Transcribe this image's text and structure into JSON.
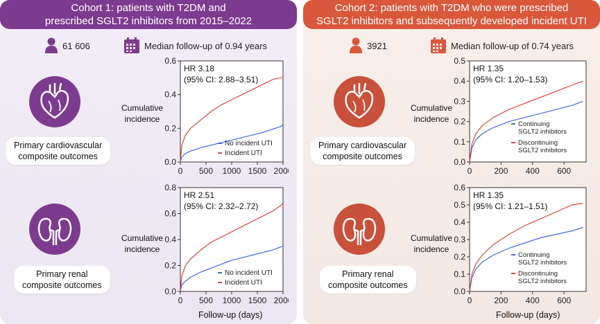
{
  "colors": {
    "cohort1": "#7d3b8f",
    "cohort2": "#d9573b",
    "blue": "#4169e1",
    "red": "#e0453a"
  },
  "cohort1": {
    "banner_line1": "Cohort 1: patients with T2DM and",
    "banner_line2": "prescribed SGLT2 inhibitors from 2015–2022",
    "n": "61 606",
    "follow_up": "Median follow-up of 0.94 years",
    "cardio_label_line1": "Primary cardiovascular",
    "cardio_label_line2": "composite outcomes",
    "renal_label_line1": "Primary renal",
    "renal_label_line2": "composite outcomes"
  },
  "cohort2": {
    "banner_line1": "Cohort 2: patients with T2DM who were prescribed",
    "banner_line2": "SGLT2 inhibitors and subsequently developed incident UTI",
    "n": "3921",
    "follow_up": "Median follow-up of 0.74 years",
    "cardio_label_line1": "Primary cardiovascular",
    "cardio_label_line2": "composite outcomes",
    "renal_label_line1": "Primary renal",
    "renal_label_line2": "composite outcomes"
  },
  "axis": {
    "ylabel_line1": "Cumulative",
    "ylabel_line2": "incidence",
    "xlabel": "Follow-up (days)"
  },
  "chart_data": [
    {
      "id": "c1_cardio",
      "type": "line",
      "title": "Cohort 1 cardiovascular",
      "hr_line1": "HR 3.18",
      "hr_line2": "(95% CI: 2.88–3.51)",
      "xlim": [
        0,
        2000
      ],
      "ylim": [
        0,
        0.6
      ],
      "xticks": [
        0,
        500,
        1000,
        1500,
        2000
      ],
      "yticks": [
        0.0,
        0.2,
        0.4,
        0.6
      ],
      "ytick_labels": [
        "0.0",
        "0.2",
        "0.4",
        "0.6"
      ],
      "legend": [
        "No incident UTI",
        "Incident UTI"
      ],
      "series": [
        {
          "name": "No incident UTI",
          "color": "blue",
          "x": [
            0,
            30,
            100,
            200,
            400,
            600,
            800,
            1000,
            1200,
            1400,
            1600,
            1800,
            1950,
            2000
          ],
          "y": [
            0,
            0.03,
            0.05,
            0.065,
            0.085,
            0.1,
            0.115,
            0.13,
            0.145,
            0.16,
            0.175,
            0.195,
            0.21,
            0.22
          ]
        },
        {
          "name": "Incident UTI",
          "color": "red",
          "x": [
            0,
            30,
            100,
            200,
            400,
            600,
            800,
            1000,
            1200,
            1400,
            1600,
            1800,
            1950,
            2000
          ],
          "y": [
            0,
            0.1,
            0.16,
            0.2,
            0.25,
            0.3,
            0.34,
            0.37,
            0.4,
            0.43,
            0.46,
            0.49,
            0.5,
            0.5
          ]
        }
      ]
    },
    {
      "id": "c1_renal",
      "type": "line",
      "title": "Cohort 1 renal",
      "hr_line1": "HR 2.51",
      "hr_line2": "(95% CI: 2.32–2.72)",
      "xlim": [
        0,
        2000
      ],
      "ylim": [
        0,
        0.8
      ],
      "xticks": [
        0,
        500,
        1000,
        1500,
        2000
      ],
      "yticks": [
        0.0,
        0.2,
        0.4,
        0.6,
        0.8
      ],
      "ytick_labels": [
        "0.0",
        "0.2",
        "0.4",
        "0.6",
        "0.8"
      ],
      "legend": [
        "No incident UTI",
        "Incident UTI"
      ],
      "series": [
        {
          "name": "No incident UTI",
          "color": "blue",
          "x": [
            0,
            30,
            100,
            200,
            400,
            600,
            800,
            1000,
            1200,
            1400,
            1600,
            1800,
            2000
          ],
          "y": [
            0,
            0.05,
            0.08,
            0.11,
            0.15,
            0.18,
            0.21,
            0.24,
            0.26,
            0.28,
            0.3,
            0.32,
            0.35
          ]
        },
        {
          "name": "Incident UTI",
          "color": "red",
          "x": [
            0,
            30,
            100,
            200,
            400,
            600,
            800,
            1000,
            1200,
            1400,
            1600,
            1800,
            1950,
            2000
          ],
          "y": [
            0,
            0.12,
            0.2,
            0.25,
            0.32,
            0.38,
            0.42,
            0.46,
            0.5,
            0.54,
            0.58,
            0.62,
            0.66,
            0.68
          ]
        }
      ]
    },
    {
      "id": "c2_cardio",
      "type": "line",
      "title": "Cohort 2 cardiovascular",
      "hr_line1": "HR 1.35",
      "hr_line2": "(95% CI: 1.20–1.53)",
      "xlim": [
        0,
        740
      ],
      "ylim": [
        0,
        0.5
      ],
      "xticks": [
        0,
        200,
        400,
        600
      ],
      "yticks": [
        0.0,
        0.1,
        0.2,
        0.3,
        0.4,
        0.5
      ],
      "ytick_labels": [
        "0.0",
        "0.1",
        "0.2",
        "0.3",
        "0.4",
        "0.5"
      ],
      "legend": [
        "Continuing SGLT2 inhibitors",
        "Discontinuing SGLT2 inhibitors"
      ],
      "legend_lines": [
        [
          "Continuing",
          "SGLT2 inhibitors"
        ],
        [
          "Discontinuing",
          "SGLT2 inhibitors"
        ]
      ],
      "series": [
        {
          "name": "Continuing SGLT2 inhibitors",
          "color": "blue",
          "x": [
            0,
            15,
            40,
            80,
            150,
            250,
            350,
            450,
            550,
            650,
            720
          ],
          "y": [
            0,
            0.07,
            0.11,
            0.14,
            0.17,
            0.2,
            0.22,
            0.24,
            0.26,
            0.28,
            0.3
          ]
        },
        {
          "name": "Discontinuing SGLT2 inhibitors",
          "color": "red",
          "x": [
            0,
            15,
            40,
            80,
            150,
            250,
            350,
            450,
            550,
            650,
            720
          ],
          "y": [
            0,
            0.09,
            0.14,
            0.18,
            0.22,
            0.26,
            0.29,
            0.32,
            0.35,
            0.38,
            0.4
          ]
        }
      ]
    },
    {
      "id": "c2_renal",
      "type": "line",
      "title": "Cohort 2 renal",
      "hr_line1": "HR 1.35",
      "hr_line2": "(95% CI: 1.21–1.51)",
      "xlim": [
        0,
        740
      ],
      "ylim": [
        0,
        0.6
      ],
      "xticks": [
        0,
        200,
        400,
        600
      ],
      "yticks": [
        0.0,
        0.1,
        0.2,
        0.3,
        0.4,
        0.5,
        0.6
      ],
      "ytick_labels": [
        "0.0",
        "0.1",
        "0.2",
        "0.3",
        "0.4",
        "0.5",
        "0.6"
      ],
      "legend": [
        "Continuing SGLT2 inhibitors",
        "Discontinuing SGLT2 inhibitors"
      ],
      "legend_lines": [
        [
          "Continuing",
          "SGLT2 inhibitors"
        ],
        [
          "Discontinuing",
          "SGLT2 inhibitors"
        ]
      ],
      "series": [
        {
          "name": "Continuing SGLT2 inhibitors",
          "color": "blue",
          "x": [
            0,
            15,
            40,
            80,
            150,
            250,
            350,
            450,
            550,
            650,
            720
          ],
          "y": [
            0,
            0.08,
            0.13,
            0.17,
            0.21,
            0.25,
            0.28,
            0.31,
            0.33,
            0.35,
            0.37
          ]
        },
        {
          "name": "Discontinuing SGLT2 inhibitors",
          "color": "red",
          "x": [
            0,
            15,
            40,
            80,
            150,
            250,
            350,
            450,
            550,
            650,
            720
          ],
          "y": [
            0,
            0.1,
            0.16,
            0.21,
            0.27,
            0.33,
            0.38,
            0.42,
            0.46,
            0.5,
            0.51
          ]
        }
      ]
    }
  ]
}
